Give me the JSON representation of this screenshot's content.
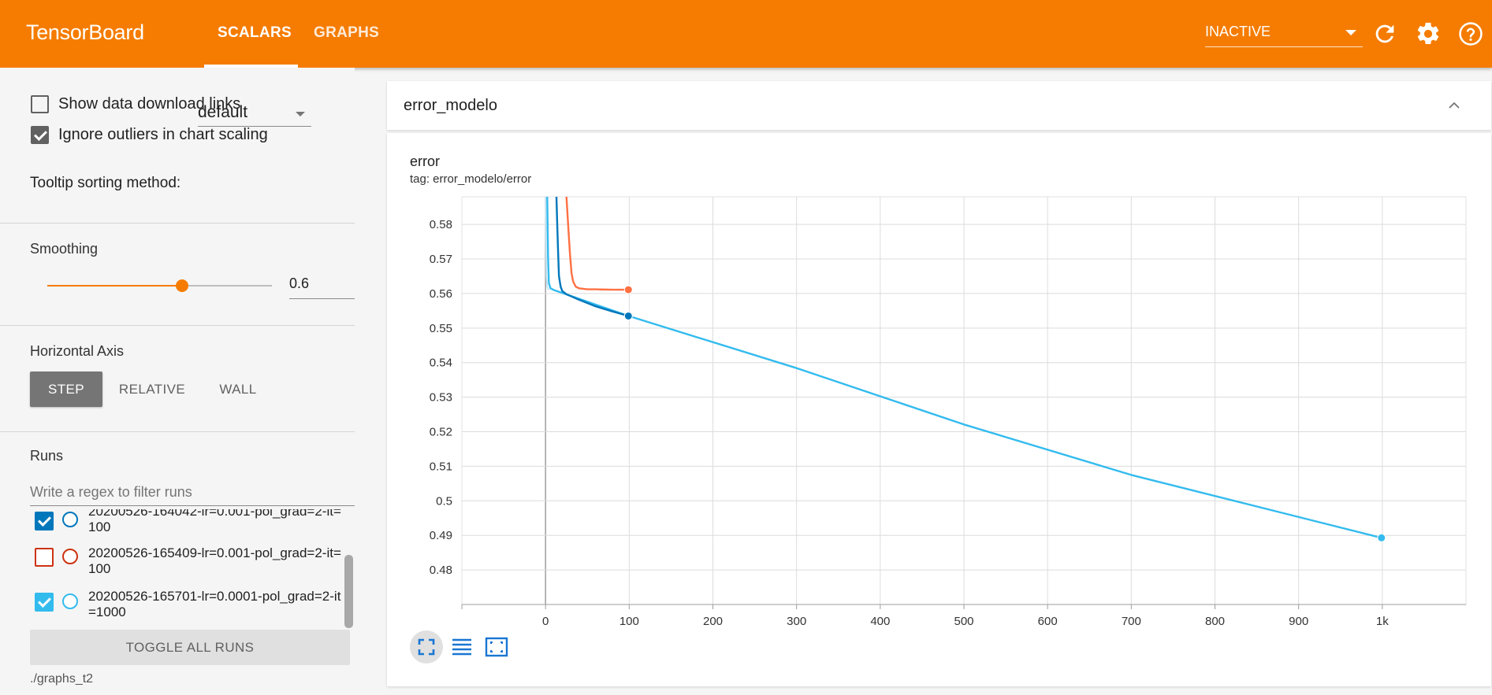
{
  "header": {
    "brand": "TensorBoard",
    "tabs": [
      {
        "label": "SCALARS",
        "active": true
      },
      {
        "label": "GRAPHS",
        "active": false
      }
    ],
    "run_select": {
      "value": "INACTIVE"
    },
    "icons": [
      "refresh-icon",
      "settings-gear-icon",
      "help-icon"
    ],
    "accent_color": "#f57c00"
  },
  "sidebar": {
    "show_download_links": {
      "label": "Show data download links",
      "checked": false
    },
    "ignore_outliers": {
      "label": "Ignore outliers in chart scaling",
      "checked": true
    },
    "tooltip_sorting": {
      "label": "Tooltip sorting method:",
      "value": "default"
    },
    "smoothing": {
      "title": "Smoothing",
      "value": "0.6",
      "fraction": 0.6
    },
    "horizontal_axis": {
      "title": "Horizontal Axis",
      "options": [
        {
          "label": "STEP",
          "active": true
        },
        {
          "label": "RELATIVE",
          "active": false
        },
        {
          "label": "WALL",
          "active": false
        }
      ]
    },
    "runs": {
      "title": "Runs",
      "filter_placeholder": "Write a regex to filter runs",
      "items": [
        {
          "name": "20200526-164042-lr=0.001-pol_grad=2-it=100",
          "checked": true,
          "color": "#0077bb"
        },
        {
          "name": "20200526-165409-lr=0.001-pol_grad=2-it=100",
          "checked": false,
          "color": "#cc3311"
        },
        {
          "name": "20200526-165701-lr=0.0001-pol_grad=2-it=1000",
          "checked": true,
          "color": "#33bbee"
        }
      ],
      "toggle_all_label": "TOGGLE ALL RUNS",
      "logdir": "./graphs_t2"
    }
  },
  "main": {
    "card_name": "error_modelo",
    "chart": {
      "title": "error",
      "tag": "tag: error_modelo/error"
    }
  },
  "chart_data": {
    "type": "line",
    "title": "error",
    "xlabel": "",
    "ylabel": "",
    "xlim": [
      -100,
      1100
    ],
    "ylim": [
      0.47,
      0.588
    ],
    "x_ticks": [
      0,
      100,
      200,
      300,
      400,
      500,
      600,
      700,
      800,
      900,
      1000
    ],
    "x_tick_labels": [
      "0",
      "100",
      "200",
      "300",
      "400",
      "500",
      "600",
      "700",
      "800",
      "900",
      "1k"
    ],
    "y_ticks": [
      0.48,
      0.49,
      0.5,
      0.51,
      0.52,
      0.53,
      0.54,
      0.55,
      0.56,
      0.57,
      0.58
    ],
    "y_tick_labels": [
      "0.48",
      "0.49",
      "0.5",
      "0.51",
      "0.52",
      "0.53",
      "0.54",
      "0.55",
      "0.56",
      "0.57",
      "0.58"
    ],
    "grid": true,
    "series": [
      {
        "color": "#ff7043",
        "x": [
          25,
          27,
          29,
          31,
          33,
          36,
          40,
          50,
          60,
          80,
          99
        ],
        "y": [
          0.588,
          0.58,
          0.572,
          0.566,
          0.5635,
          0.562,
          0.5615,
          0.5612,
          0.5612,
          0.5611,
          0.5611
        ]
      },
      {
        "color": "#0077bb",
        "x": [
          13,
          14,
          15,
          16,
          18,
          20,
          25,
          40,
          60,
          80,
          99
        ],
        "y": [
          0.588,
          0.58,
          0.572,
          0.565,
          0.562,
          0.5607,
          0.5598,
          0.5582,
          0.5563,
          0.5548,
          0.5535
        ]
      },
      {
        "color": "#33bbee",
        "x": [
          2,
          2.5,
          3,
          4,
          6,
          10,
          99,
          300,
          500,
          700,
          999
        ],
        "y": [
          0.588,
          0.58,
          0.57,
          0.563,
          0.5615,
          0.561,
          0.5535,
          0.5384,
          0.5221,
          0.5075,
          0.4893
        ]
      },
      {
        "color": "#bfe3f4",
        "x": [
          0,
          0.5,
          1,
          2,
          4
        ],
        "y": [
          0.588,
          0.575,
          0.565,
          0.562,
          0.561
        ]
      }
    ],
    "markers": [
      {
        "series": 0,
        "x": 99,
        "y": 0.5611
      },
      {
        "series": 1,
        "x": 99,
        "y": 0.5535
      },
      {
        "series": 2,
        "x": 999,
        "y": 0.4893
      }
    ]
  }
}
